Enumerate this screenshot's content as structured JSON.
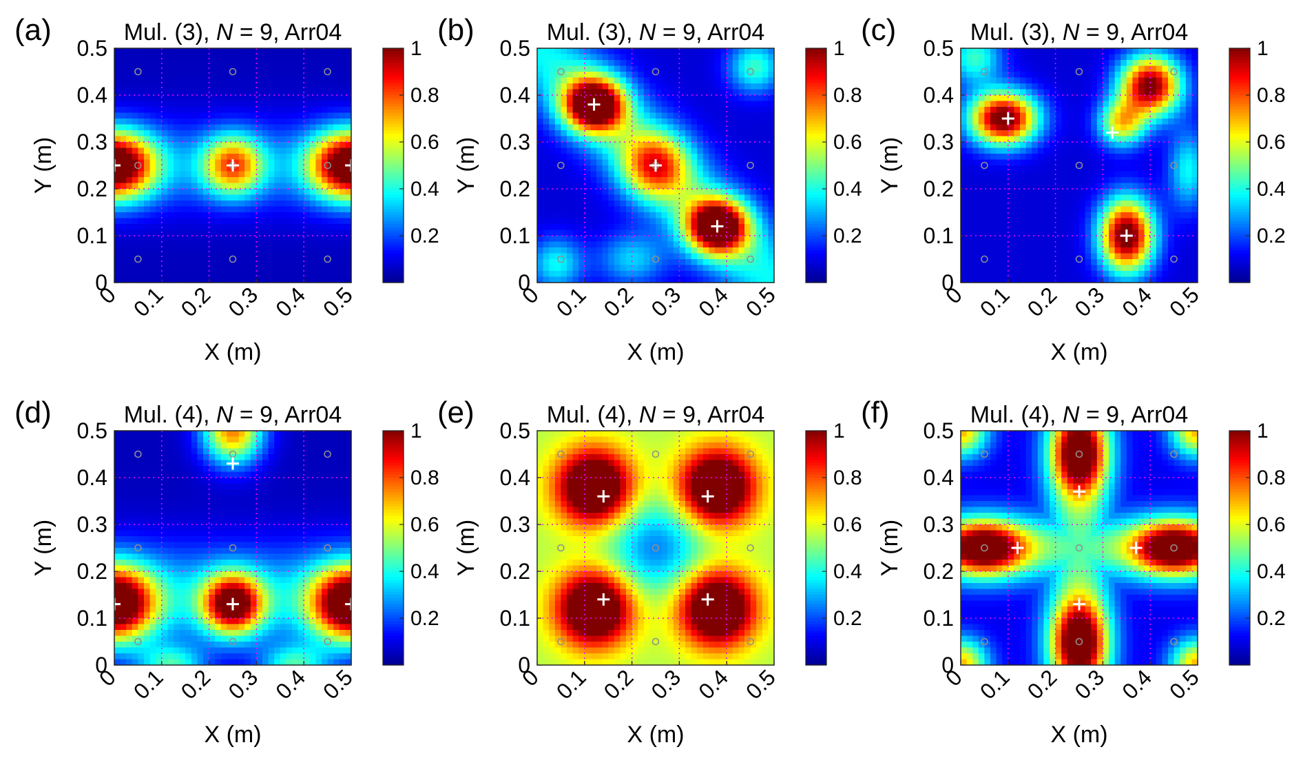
{
  "figure": {
    "description_free": true
  },
  "colormap": {
    "name": "jet",
    "stops": [
      "#00008f",
      "#0000ff",
      "#0080ff",
      "#00ffff",
      "#80ff80",
      "#ffff00",
      "#ff8000",
      "#ff0000",
      "#800000"
    ]
  },
  "marker_colors": {
    "sensor": "#909090",
    "grid": "#ff00ff",
    "peak": "#ffffff"
  },
  "chart_data": [
    {
      "type": "heatmap",
      "panel": "(a)",
      "title_prefix": "Mul. (3), ",
      "title_var": "N",
      "title_suffix": " = 9, Arr04",
      "xlabel": "X (m)",
      "ylabel": "Y (m)",
      "xlim": [
        0,
        0.5
      ],
      "ylim": [
        0,
        0.5
      ],
      "xticks": [
        "0",
        "0.1",
        "0.2",
        "0.3",
        "0.4",
        "0.5"
      ],
      "yticks": [
        "0",
        "0.1",
        "0.2",
        "0.3",
        "0.4",
        "0.5"
      ],
      "colorbar": {
        "range": [
          0,
          1
        ],
        "ticks": [
          "0.2",
          "0.4",
          "0.6",
          "0.8",
          "1"
        ]
      },
      "sensors": [
        [
          0.05,
          0.05
        ],
        [
          0.25,
          0.05
        ],
        [
          0.45,
          0.05
        ],
        [
          0.05,
          0.25
        ],
        [
          0.25,
          0.25
        ],
        [
          0.45,
          0.25
        ],
        [
          0.05,
          0.45
        ],
        [
          0.25,
          0.45
        ],
        [
          0.45,
          0.45
        ]
      ],
      "peaks": [
        [
          0.0,
          0.25
        ],
        [
          0.25,
          0.25
        ],
        [
          0.5,
          0.25
        ]
      ],
      "blobs": [
        {
          "x": 0.0,
          "y": 0.25,
          "sx": 0.06,
          "sy": 0.05,
          "a": 1.0
        },
        {
          "x": 0.5,
          "y": 0.25,
          "sx": 0.06,
          "sy": 0.05,
          "a": 1.0
        },
        {
          "x": 0.25,
          "y": 0.25,
          "sx": 0.045,
          "sy": 0.045,
          "a": 0.62
        }
      ],
      "band": {
        "axis": "y",
        "center": 0.25,
        "width": 0.07,
        "a": 0.18
      },
      "floor": 0.05
    },
    {
      "type": "heatmap",
      "panel": "(b)",
      "title_prefix": "Mul. (3), ",
      "title_var": "N",
      "title_suffix": " = 9, Arr04",
      "xlabel": "X (m)",
      "ylabel": "Y (m)",
      "xlim": [
        0,
        0.5
      ],
      "ylim": [
        0,
        0.5
      ],
      "xticks": [
        "0",
        "0.1",
        "0.2",
        "0.3",
        "0.4",
        "0.5"
      ],
      "yticks": [
        "0",
        "0.1",
        "0.2",
        "0.3",
        "0.4",
        "0.5"
      ],
      "colorbar": {
        "range": [
          0,
          1
        ],
        "ticks": [
          "0.2",
          "0.4",
          "0.6",
          "0.8",
          "1"
        ]
      },
      "sensors": [
        [
          0.05,
          0.05
        ],
        [
          0.25,
          0.05
        ],
        [
          0.45,
          0.05
        ],
        [
          0.05,
          0.25
        ],
        [
          0.25,
          0.25
        ],
        [
          0.45,
          0.25
        ],
        [
          0.05,
          0.45
        ],
        [
          0.25,
          0.45
        ],
        [
          0.45,
          0.45
        ]
      ],
      "peaks": [
        [
          0.12,
          0.38
        ],
        [
          0.25,
          0.25
        ],
        [
          0.38,
          0.12
        ]
      ],
      "blobs": [
        {
          "x": 0.12,
          "y": 0.38,
          "sx": 0.045,
          "sy": 0.04,
          "a": 1.0
        },
        {
          "x": 0.38,
          "y": 0.12,
          "sx": 0.045,
          "sy": 0.04,
          "a": 1.0
        },
        {
          "x": 0.25,
          "y": 0.25,
          "sx": 0.05,
          "sy": 0.05,
          "a": 0.55
        },
        {
          "x": 0.46,
          "y": 0.46,
          "sx": 0.04,
          "sy": 0.04,
          "a": 0.35
        },
        {
          "x": 0.04,
          "y": 0.04,
          "sx": 0.04,
          "sy": 0.04,
          "a": 0.3
        },
        {
          "x": 0.2,
          "y": 0.05,
          "sx": 0.05,
          "sy": 0.04,
          "a": 0.25
        }
      ],
      "band": {
        "axis": "diag",
        "center": 0.5,
        "width": 0.06,
        "a": 0.3
      },
      "floor": 0.08
    },
    {
      "type": "heatmap",
      "panel": "(c)",
      "title_prefix": "Mul. (3), ",
      "title_var": "N",
      "title_suffix": " = 9, Arr04",
      "xlabel": "X (m)",
      "ylabel": "Y (m)",
      "xlim": [
        0,
        0.5
      ],
      "ylim": [
        0,
        0.5
      ],
      "xticks": [
        "0",
        "0.1",
        "0.2",
        "0.3",
        "0.4",
        "0.5"
      ],
      "yticks": [
        "0",
        "0.1",
        "0.2",
        "0.3",
        "0.4",
        "0.5"
      ],
      "colorbar": {
        "range": [
          0,
          1
        ],
        "ticks": [
          "0.2",
          "0.4",
          "0.6",
          "0.8",
          "1"
        ]
      },
      "sensors": [
        [
          0.05,
          0.05
        ],
        [
          0.25,
          0.05
        ],
        [
          0.45,
          0.05
        ],
        [
          0.05,
          0.25
        ],
        [
          0.25,
          0.25
        ],
        [
          0.45,
          0.25
        ],
        [
          0.05,
          0.45
        ],
        [
          0.25,
          0.45
        ],
        [
          0.45,
          0.45
        ]
      ],
      "peaks": [
        [
          0.1,
          0.35
        ],
        [
          0.32,
          0.32
        ],
        [
          0.35,
          0.1
        ]
      ],
      "blobs": [
        {
          "x": 0.09,
          "y": 0.35,
          "sx": 0.05,
          "sy": 0.04,
          "a": 1.0
        },
        {
          "x": 0.35,
          "y": 0.1,
          "sx": 0.04,
          "sy": 0.055,
          "a": 1.0
        },
        {
          "x": 0.4,
          "y": 0.42,
          "sx": 0.045,
          "sy": 0.045,
          "a": 0.95
        },
        {
          "x": 0.34,
          "y": 0.34,
          "sx": 0.035,
          "sy": 0.035,
          "a": 0.55
        },
        {
          "x": 0.03,
          "y": 0.48,
          "sx": 0.04,
          "sy": 0.04,
          "a": 0.35
        },
        {
          "x": 0.48,
          "y": 0.24,
          "sx": 0.03,
          "sy": 0.06,
          "a": 0.3
        }
      ],
      "band": null,
      "floor": 0.08
    },
    {
      "type": "heatmap",
      "panel": "(d)",
      "title_prefix": "Mul. (4), ",
      "title_var": "N",
      "title_suffix": " = 9, Arr04",
      "xlabel": "X (m)",
      "ylabel": "Y (m)",
      "xlim": [
        0,
        0.5
      ],
      "ylim": [
        0,
        0.5
      ],
      "xticks": [
        "0",
        "0.1",
        "0.2",
        "0.3",
        "0.4",
        "0.5"
      ],
      "yticks": [
        "0",
        "0.1",
        "0.2",
        "0.3",
        "0.4",
        "0.5"
      ],
      "colorbar": {
        "range": [
          0,
          1
        ],
        "ticks": [
          "0.2",
          "0.4",
          "0.6",
          "0.8",
          "1"
        ]
      },
      "sensors": [
        [
          0.05,
          0.05
        ],
        [
          0.25,
          0.05
        ],
        [
          0.45,
          0.05
        ],
        [
          0.05,
          0.25
        ],
        [
          0.25,
          0.25
        ],
        [
          0.45,
          0.25
        ],
        [
          0.05,
          0.45
        ],
        [
          0.25,
          0.45
        ],
        [
          0.45,
          0.45
        ]
      ],
      "peaks": [
        [
          0.0,
          0.13
        ],
        [
          0.25,
          0.13
        ],
        [
          0.5,
          0.13
        ],
        [
          0.25,
          0.43
        ]
      ],
      "blobs": [
        {
          "x": 0.0,
          "y": 0.13,
          "sx": 0.06,
          "sy": 0.055,
          "a": 1.0
        },
        {
          "x": 0.5,
          "y": 0.13,
          "sx": 0.06,
          "sy": 0.055,
          "a": 1.0
        },
        {
          "x": 0.25,
          "y": 0.13,
          "sx": 0.045,
          "sy": 0.045,
          "a": 0.9
        },
        {
          "x": 0.25,
          "y": 0.5,
          "sx": 0.045,
          "sy": 0.05,
          "a": 0.7
        },
        {
          "x": 0.12,
          "y": 0.0,
          "sx": 0.05,
          "sy": 0.03,
          "a": 0.35
        },
        {
          "x": 0.38,
          "y": 0.0,
          "sx": 0.05,
          "sy": 0.03,
          "a": 0.35
        }
      ],
      "band": {
        "axis": "y",
        "center": 0.15,
        "width": 0.08,
        "a": 0.25
      },
      "floor": 0.05
    },
    {
      "type": "heatmap",
      "panel": "(e)",
      "title_prefix": "Mul. (4), ",
      "title_var": "N",
      "title_suffix": " = 9, Arr04",
      "xlabel": "X (m)",
      "ylabel": "Y (m)",
      "xlim": [
        0,
        0.5
      ],
      "ylim": [
        0,
        0.5
      ],
      "xticks": [
        "0",
        "0.1",
        "0.2",
        "0.3",
        "0.4",
        "0.5"
      ],
      "yticks": [
        "0",
        "0.1",
        "0.2",
        "0.3",
        "0.4",
        "0.5"
      ],
      "colorbar": {
        "range": [
          0,
          1
        ],
        "ticks": [
          "0.2",
          "0.4",
          "0.6",
          "0.8",
          "1"
        ]
      },
      "sensors": [
        [
          0.05,
          0.05
        ],
        [
          0.25,
          0.05
        ],
        [
          0.45,
          0.05
        ],
        [
          0.05,
          0.25
        ],
        [
          0.25,
          0.25
        ],
        [
          0.45,
          0.25
        ],
        [
          0.05,
          0.45
        ],
        [
          0.25,
          0.45
        ],
        [
          0.45,
          0.45
        ]
      ],
      "peaks": [
        [
          0.14,
          0.36
        ],
        [
          0.36,
          0.36
        ],
        [
          0.14,
          0.14
        ],
        [
          0.36,
          0.14
        ]
      ],
      "blobs": [
        {
          "x": 0.12,
          "y": 0.38,
          "sx": 0.055,
          "sy": 0.055,
          "a": 0.75
        },
        {
          "x": 0.38,
          "y": 0.38,
          "sx": 0.055,
          "sy": 0.055,
          "a": 0.75
        },
        {
          "x": 0.12,
          "y": 0.12,
          "sx": 0.055,
          "sy": 0.055,
          "a": 0.75
        },
        {
          "x": 0.38,
          "y": 0.12,
          "sx": 0.055,
          "sy": 0.055,
          "a": 0.75
        },
        {
          "x": 0.25,
          "y": 0.25,
          "sx": 0.07,
          "sy": 0.07,
          "a": -0.3
        }
      ],
      "band": null,
      "floor": 0.55
    },
    {
      "type": "heatmap",
      "panel": "(f)",
      "title_prefix": "Mul. (4), ",
      "title_var": "N",
      "title_suffix": " = 9, Arr04",
      "xlabel": "X (m)",
      "ylabel": "Y (m)",
      "xlim": [
        0,
        0.5
      ],
      "ylim": [
        0,
        0.5
      ],
      "xticks": [
        "0",
        "0.1",
        "0.2",
        "0.3",
        "0.4",
        "0.5"
      ],
      "yticks": [
        "0",
        "0.1",
        "0.2",
        "0.3",
        "0.4",
        "0.5"
      ],
      "colorbar": {
        "range": [
          0,
          1
        ],
        "ticks": [
          "0.2",
          "0.4",
          "0.6",
          "0.8",
          "1"
        ]
      },
      "sensors": [
        [
          0.05,
          0.05
        ],
        [
          0.25,
          0.05
        ],
        [
          0.45,
          0.05
        ],
        [
          0.05,
          0.25
        ],
        [
          0.25,
          0.25
        ],
        [
          0.45,
          0.25
        ],
        [
          0.05,
          0.45
        ],
        [
          0.25,
          0.45
        ],
        [
          0.45,
          0.45
        ]
      ],
      "peaks": [
        [
          0.25,
          0.37
        ],
        [
          0.12,
          0.25
        ],
        [
          0.37,
          0.25
        ],
        [
          0.25,
          0.13
        ]
      ],
      "blobs": [
        {
          "x": 0.25,
          "y": 0.45,
          "sx": 0.04,
          "sy": 0.06,
          "a": 0.8
        },
        {
          "x": 0.25,
          "y": 0.05,
          "sx": 0.04,
          "sy": 0.06,
          "a": 0.8
        },
        {
          "x": 0.05,
          "y": 0.25,
          "sx": 0.06,
          "sy": 0.04,
          "a": 0.8
        },
        {
          "x": 0.45,
          "y": 0.25,
          "sx": 0.06,
          "sy": 0.04,
          "a": 0.8
        },
        {
          "x": 0.0,
          "y": 0.5,
          "sx": 0.04,
          "sy": 0.04,
          "a": 0.6
        },
        {
          "x": 0.5,
          "y": 0.5,
          "sx": 0.04,
          "sy": 0.04,
          "a": 0.6
        },
        {
          "x": 0.0,
          "y": 0.0,
          "sx": 0.04,
          "sy": 0.04,
          "a": 0.6
        },
        {
          "x": 0.5,
          "y": 0.0,
          "sx": 0.04,
          "sy": 0.04,
          "a": 0.6
        }
      ],
      "band": {
        "axis": "cross",
        "center": 0.25,
        "width": 0.05,
        "a": 0.35
      },
      "floor": 0.1
    }
  ]
}
